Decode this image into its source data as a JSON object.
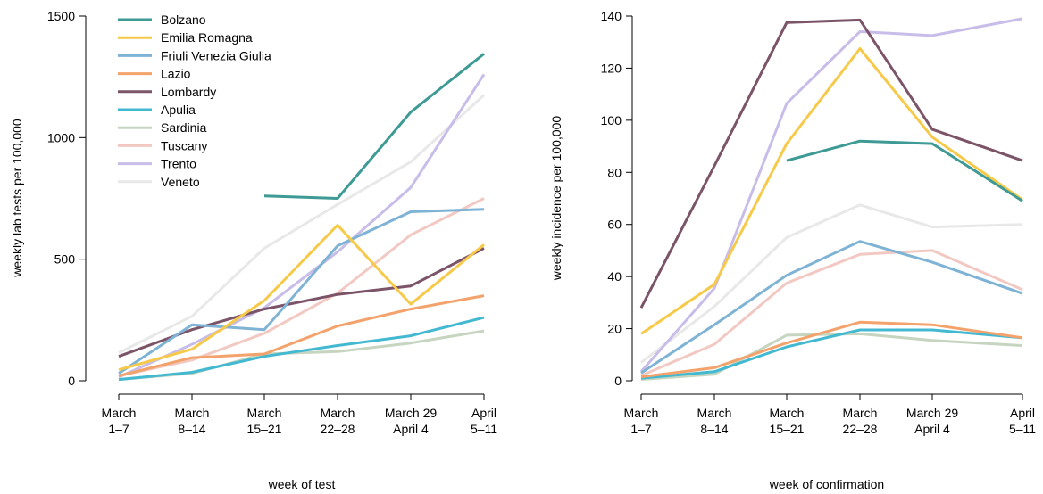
{
  "chart_data": [
    {
      "type": "line",
      "xlabel": "week of test",
      "ylabel": "weekly lab tests per 100,000",
      "ylim": [
        0,
        1500
      ],
      "yticks": [
        0,
        500,
        1000,
        1500
      ],
      "categories": [
        [
          "March",
          "1–7"
        ],
        [
          "March",
          "8–14"
        ],
        [
          "March",
          "15–21"
        ],
        [
          "March",
          "22–28"
        ],
        [
          "March 29",
          "April 4"
        ],
        [
          "April",
          "5–11"
        ]
      ],
      "legend_position": "top-left",
      "grid": false,
      "series": [
        {
          "name": "Bolzano",
          "color": "#3d9a94",
          "values": [
            null,
            null,
            760,
            750,
            1105,
            1345
          ]
        },
        {
          "name": "Emilia Romagna",
          "color": "#f7c948",
          "values": [
            45,
            130,
            330,
            640,
            315,
            560
          ]
        },
        {
          "name": "Friuli Venezia Giulia",
          "color": "#7fb3d5",
          "values": [
            30,
            230,
            210,
            555,
            695,
            705
          ]
        },
        {
          "name": "Lazio",
          "color": "#f4a26b",
          "values": [
            20,
            95,
            110,
            225,
            295,
            350
          ]
        },
        {
          "name": "Lombardy",
          "color": "#7b5468",
          "values": [
            100,
            210,
            295,
            355,
            390,
            545
          ]
        },
        {
          "name": "Apulia",
          "color": "#43b8d1",
          "values": [
            5,
            35,
            100,
            145,
            185,
            260
          ]
        },
        {
          "name": "Sardinia",
          "color": "#c5d5c0",
          "values": [
            5,
            30,
            110,
            120,
            155,
            205
          ]
        },
        {
          "name": "Tuscany",
          "color": "#f2c9c2",
          "values": [
            20,
            85,
            195,
            360,
            600,
            750
          ]
        },
        {
          "name": "Trento",
          "color": "#c8bde8",
          "values": [
            15,
            150,
            300,
            530,
            795,
            1260
          ]
        },
        {
          "name": "Veneto",
          "color": "#e8e8e8",
          "values": [
            115,
            265,
            545,
            725,
            900,
            1175
          ]
        }
      ]
    },
    {
      "type": "line",
      "xlabel": "week of confirmation",
      "ylabel": "weekly incidence per 100,000",
      "ylim": [
        0,
        140
      ],
      "yticks": [
        0,
        20,
        40,
        60,
        80,
        100,
        120,
        140
      ],
      "categories": [
        [
          "March",
          "1–7"
        ],
        [
          "March",
          "8–14"
        ],
        [
          "March",
          "15–21"
        ],
        [
          "March",
          "22–28"
        ],
        [
          "March 29",
          "April 4"
        ],
        [
          "April",
          "5–11"
        ]
      ],
      "grid": false,
      "series": [
        {
          "name": "Bolzano",
          "color": "#3d9a94",
          "values": [
            null,
            null,
            84.5,
            92,
            91,
            69
          ]
        },
        {
          "name": "Emilia Romagna",
          "color": "#f7c948",
          "values": [
            18,
            37,
            91,
            127.5,
            93.5,
            69.5
          ]
        },
        {
          "name": "Friuli Venezia Giulia",
          "color": "#7fb3d5",
          "values": [
            3,
            21.5,
            40.5,
            53.5,
            45.5,
            33.5
          ]
        },
        {
          "name": "Lazio",
          "color": "#f4a26b",
          "values": [
            1.5,
            5,
            14.5,
            22.5,
            21.5,
            16.5
          ]
        },
        {
          "name": "Lombardy",
          "color": "#7b5468",
          "values": [
            28,
            82.5,
            137.5,
            138.5,
            96.5,
            84.5
          ]
        },
        {
          "name": "Apulia",
          "color": "#43b8d1",
          "values": [
            1,
            3.5,
            13,
            19.5,
            19.5,
            16.5
          ]
        },
        {
          "name": "Sardinia",
          "color": "#c5d5c0",
          "values": [
            0.5,
            2.5,
            17.5,
            18,
            15.5,
            13.5
          ]
        },
        {
          "name": "Tuscany",
          "color": "#f2c9c2",
          "values": [
            2,
            14,
            37.5,
            48.5,
            50,
            35
          ]
        },
        {
          "name": "Trento",
          "color": "#c8bde8",
          "values": [
            3.5,
            35.5,
            106.5,
            134,
            132.5,
            139
          ]
        },
        {
          "name": "Veneto",
          "color": "#e8e8e8",
          "values": [
            7,
            28.5,
            55,
            67.5,
            59,
            60
          ]
        }
      ]
    }
  ]
}
